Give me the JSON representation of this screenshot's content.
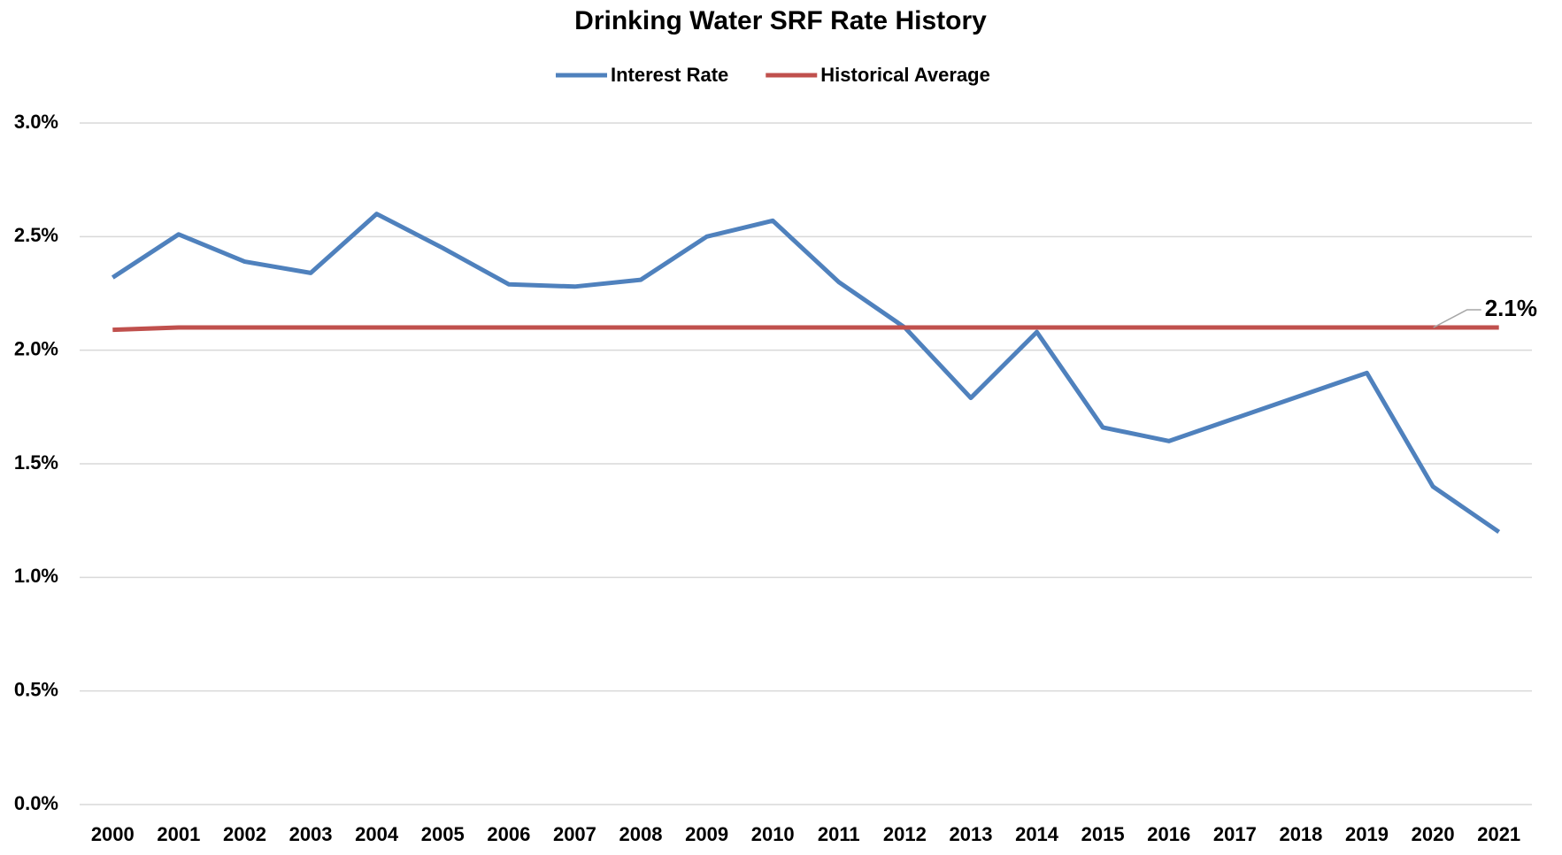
{
  "chart_data": {
    "type": "line",
    "title": "Drinking Water SRF Rate History",
    "categories": [
      "2000",
      "2001",
      "2002",
      "2003",
      "2004",
      "2005",
      "2006",
      "2007",
      "2008",
      "2009",
      "2010",
      "2011",
      "2012",
      "2013",
      "2014",
      "2015",
      "2016",
      "2017",
      "2018",
      "2019",
      "2020",
      "2021"
    ],
    "series": [
      {
        "name": "Interest Rate",
        "color": "#4f81bd",
        "values": [
          2.32,
          2.51,
          2.39,
          2.34,
          2.6,
          2.45,
          2.29,
          2.28,
          2.31,
          2.5,
          2.57,
          2.3,
          2.1,
          1.79,
          2.08,
          1.66,
          1.6,
          1.7,
          1.8,
          1.9,
          1.4,
          1.2
        ]
      },
      {
        "name": "Historical Average",
        "color": "#c0504d",
        "values": [
          2.09,
          2.1,
          2.1,
          2.1,
          2.1,
          2.1,
          2.1,
          2.1,
          2.1,
          2.1,
          2.1,
          2.1,
          2.1,
          2.1,
          2.1,
          2.1,
          2.1,
          2.1,
          2.1,
          2.1,
          2.1,
          2.1
        ],
        "value_labels": [
          null,
          null,
          null,
          null,
          null,
          null,
          null,
          null,
          null,
          null,
          null,
          null,
          null,
          null,
          null,
          null,
          null,
          null,
          null,
          null,
          null,
          "2.1%"
        ]
      }
    ],
    "ylim": [
      0,
      3
    ],
    "yticks": [
      {
        "value": 0,
        "label": "0.0%"
      },
      {
        "value": 0.5,
        "label": "0.5%"
      },
      {
        "value": 1,
        "label": "1.0%"
      },
      {
        "value": 1.5,
        "label": "1.5%"
      },
      {
        "value": 2,
        "label": "2.0%"
      },
      {
        "value": 2.5,
        "label": "2.5%"
      },
      {
        "value": 3,
        "label": "3.0%"
      }
    ],
    "grid": true,
    "legend": "top"
  }
}
